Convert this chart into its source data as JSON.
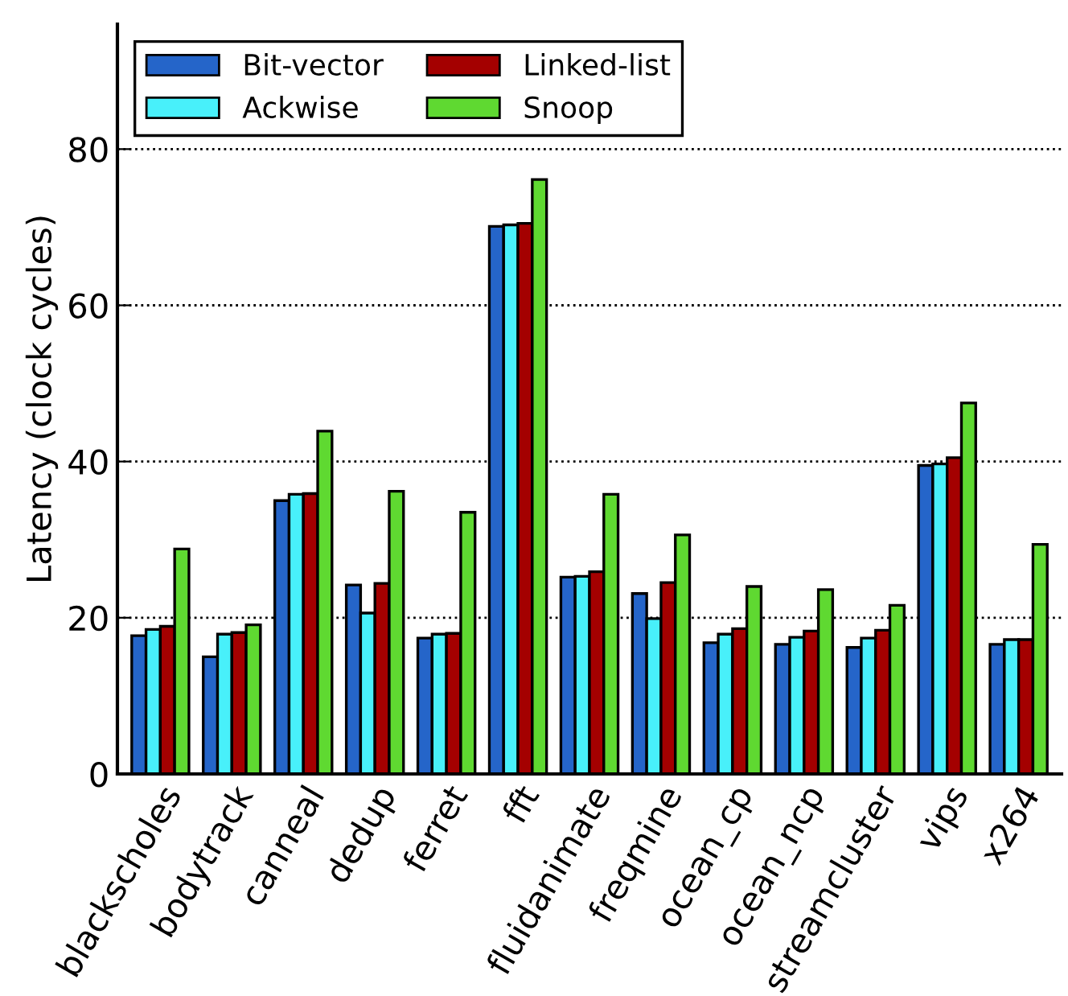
{
  "chart_data": {
    "type": "bar",
    "ylabel": "Latency (clock cycles)",
    "categories": [
      "blackscholes",
      "bodytrack",
      "canneal",
      "dedup",
      "ferret",
      "fft",
      "fluidanimate",
      "freqmine",
      "ocean_cp",
      "ocean_ncp",
      "streamcluster",
      "vips",
      "x264"
    ],
    "series": [
      {
        "name": "Bit-vector",
        "color": "#2565c9",
        "values": [
          17.7,
          15.0,
          35.0,
          24.2,
          17.4,
          70.1,
          25.2,
          23.1,
          16.8,
          16.6,
          16.2,
          39.5,
          16.6
        ]
      },
      {
        "name": "Ackwise",
        "color": "#48f0fa",
        "values": [
          18.5,
          17.9,
          35.8,
          20.6,
          17.9,
          70.3,
          25.3,
          19.9,
          17.9,
          17.5,
          17.4,
          39.7,
          17.2
        ]
      },
      {
        "name": "Linked-list",
        "color": "#a40000",
        "values": [
          18.9,
          18.1,
          35.9,
          24.4,
          18.0,
          70.5,
          25.9,
          24.5,
          18.6,
          18.3,
          18.4,
          40.5,
          17.2
        ]
      },
      {
        "name": "Snoop",
        "color": "#5fd931",
        "values": [
          28.8,
          19.1,
          43.9,
          36.2,
          33.5,
          76.1,
          35.8,
          30.6,
          24.0,
          23.6,
          21.6,
          47.5,
          29.4
        ]
      }
    ],
    "ylim": [
      0,
      96
    ],
    "yticks": [
      0,
      20,
      40,
      60,
      80
    ],
    "grid": "y",
    "legend": "top left"
  }
}
